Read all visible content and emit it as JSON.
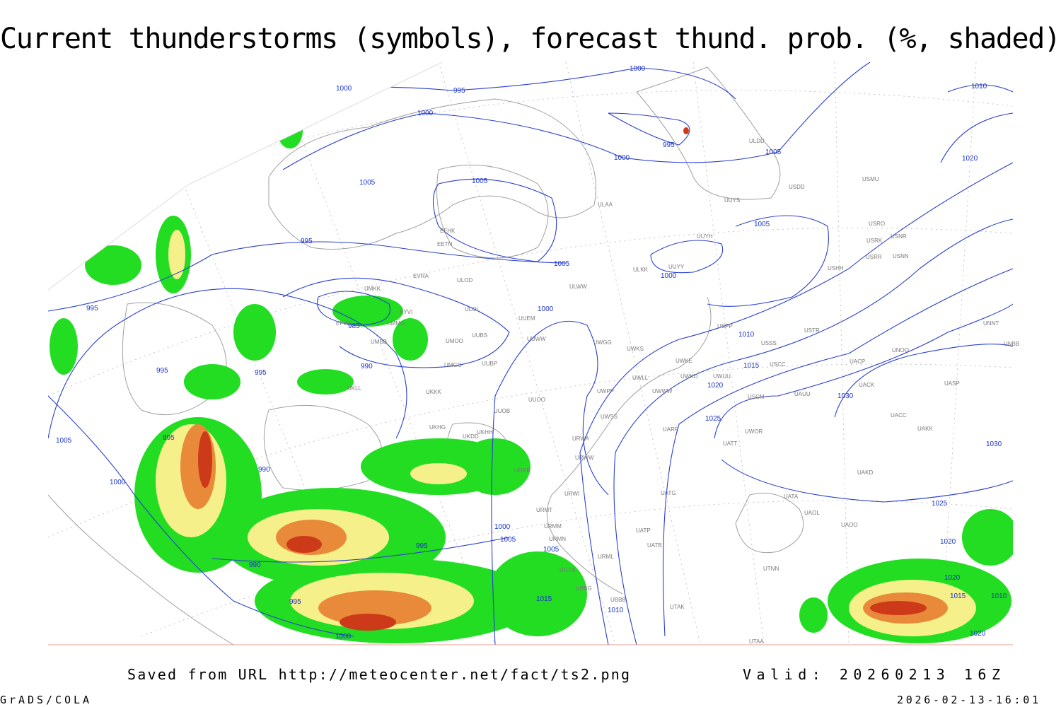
{
  "header": {
    "title": "Current thunderstorms (symbols), forecast thund. prob. (%, shaded)"
  },
  "map": {
    "isobar_labels": [
      1000,
      995,
      1000,
      1000,
      995,
      1000,
      1005,
      1010,
      1020,
      1005,
      1005,
      995,
      1005,
      1005,
      1000,
      995,
      985,
      1000,
      1010,
      990,
      995,
      995,
      1015,
      1020,
      1030,
      1025,
      995,
      1005,
      1030,
      990,
      1000,
      1025,
      1000,
      1005,
      995,
      1005,
      1020,
      990,
      1020,
      1015,
      995,
      1015,
      1010,
      1010,
      1000,
      1020
    ],
    "stations": [
      "ULDD",
      "ULAA",
      "USDD",
      "USMU",
      "UUYS",
      "EFHK",
      "EETN",
      "USRO",
      "USNR",
      "USRK",
      "UUYH",
      "USRR",
      "USNN",
      "UUYY",
      "ULKK",
      "USHH",
      "EVRA",
      "ULOD",
      "ULWW",
      "UMKK",
      "EYVI",
      "ULOL",
      "UUEM",
      "EPWA",
      "UMMG",
      "USPP",
      "USTR",
      "UUBS",
      "UUWW",
      "UMOO",
      "UMBB",
      "USSS",
      "UWGG",
      "UWKS",
      "UNOO",
      "UNNT",
      "UNBB",
      "UWKE",
      "UMGG",
      "UUBP",
      "USCC",
      "UACP",
      "UWKD",
      "UWUU",
      "UWLL",
      "UKLL",
      "UWWW",
      "UWPP",
      "UACK",
      "UASP",
      "UKKK",
      "USCM",
      "UAUU",
      "UUOO",
      "UUOB",
      "UWSS",
      "UACC",
      "UKHG",
      "UAKK",
      "UARR",
      "UKHH",
      "UWOR",
      "UKDD",
      "URWA",
      "URWW",
      "UATT",
      "UAKD",
      "URRR",
      "URWI",
      "UATG",
      "UATA",
      "URMT",
      "UAOL",
      "URMM",
      "UAOO",
      "URMN",
      "UATP",
      "UATB",
      "URML",
      "UGTB",
      "UBBG",
      "UBBB",
      "UTAK",
      "UTNN",
      "UTAA"
    ]
  },
  "footer": {
    "source": "Saved from URL http://meteocenter.net/fact/ts2.png",
    "valid": "Valid: 20260213 16Z",
    "software": "GrADS/COLA",
    "timestamp": "2026-02-13-16:01"
  }
}
